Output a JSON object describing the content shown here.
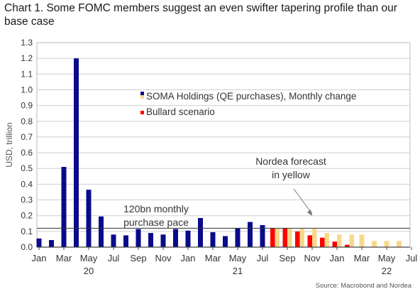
{
  "title": "Chart 1. Some FOMC members suggest an even swifter tapering profile than our base case",
  "source": "Source: Macrobond and Nordea",
  "colors": {
    "soma": "#0a0a8c",
    "forecast": "#f7d98b",
    "bullard": "#ff0000",
    "grid": "#cfcfcf",
    "axis": "#444444"
  },
  "chart_data": {
    "type": "bar",
    "ylabel": "USD, trillion",
    "ylim": [
      0,
      1.3
    ],
    "yticks": [
      "0.0",
      "0.1",
      "0.2",
      "0.3",
      "0.4",
      "0.5",
      "0.6",
      "0.7",
      "0.8",
      "0.9",
      "1.0",
      "1.1",
      "1.2",
      "1.3"
    ],
    "reference_line": 0.12,
    "x_month_labels": [
      "Jan",
      "Mar",
      "May",
      "Jul",
      "Sep",
      "Nov",
      "Jan",
      "Mar",
      "May",
      "Jul",
      "Sep",
      "Nov",
      "Jan",
      "Mar",
      "May",
      "Jul"
    ],
    "x_year_labels": [
      "20",
      "21",
      "22"
    ],
    "legend": [
      {
        "label": "SOMA Holdings (QE purchases), Monthly change",
        "colors": [
          "#0a0a8c",
          "#f7d98b"
        ]
      },
      {
        "label": "Bullard scenario",
        "colors": [
          "#ff0000"
        ]
      }
    ],
    "annotations": [
      {
        "text": "Nordea forecast",
        "text2": "in yellow"
      },
      {
        "text": "120bn monthly",
        "text2": "purchase pace"
      }
    ],
    "months": [
      "2020-01",
      "2020-02",
      "2020-03",
      "2020-04",
      "2020-05",
      "2020-06",
      "2020-07",
      "2020-08",
      "2020-09",
      "2020-10",
      "2020-11",
      "2020-12",
      "2021-01",
      "2021-02",
      "2021-03",
      "2021-04",
      "2021-05",
      "2021-06",
      "2021-07",
      "2021-08",
      "2021-09",
      "2021-10",
      "2021-11",
      "2021-12",
      "2022-01",
      "2022-02",
      "2022-03",
      "2022-04",
      "2022-05",
      "2022-06",
      "2022-07"
    ],
    "series": [
      {
        "name": "SOMA Holdings (QE purchases), Monthly change",
        "values": [
          0.055,
          0.045,
          0.51,
          1.2,
          0.365,
          0.195,
          0.08,
          0.075,
          0.115,
          0.09,
          0.08,
          0.115,
          0.105,
          0.185,
          0.095,
          0.07,
          0.12,
          0.16,
          0.14,
          null,
          null,
          null,
          null,
          null,
          null,
          null,
          null,
          null,
          null,
          null,
          null
        ]
      },
      {
        "name": "Nordea forecast",
        "values": [
          null,
          null,
          null,
          null,
          null,
          null,
          null,
          null,
          null,
          null,
          null,
          null,
          null,
          null,
          null,
          null,
          null,
          null,
          null,
          0.12,
          0.12,
          0.12,
          0.12,
          0.09,
          0.08,
          0.08,
          0.08,
          0.04,
          0.04,
          0.04,
          null
        ]
      },
      {
        "name": "Bullard scenario",
        "values": [
          null,
          null,
          null,
          null,
          null,
          null,
          null,
          null,
          null,
          null,
          null,
          null,
          null,
          null,
          null,
          null,
          null,
          null,
          null,
          0.12,
          0.12,
          0.1,
          0.075,
          0.06,
          0.035,
          0.015,
          null,
          null,
          null,
          null,
          null
        ]
      }
    ]
  }
}
